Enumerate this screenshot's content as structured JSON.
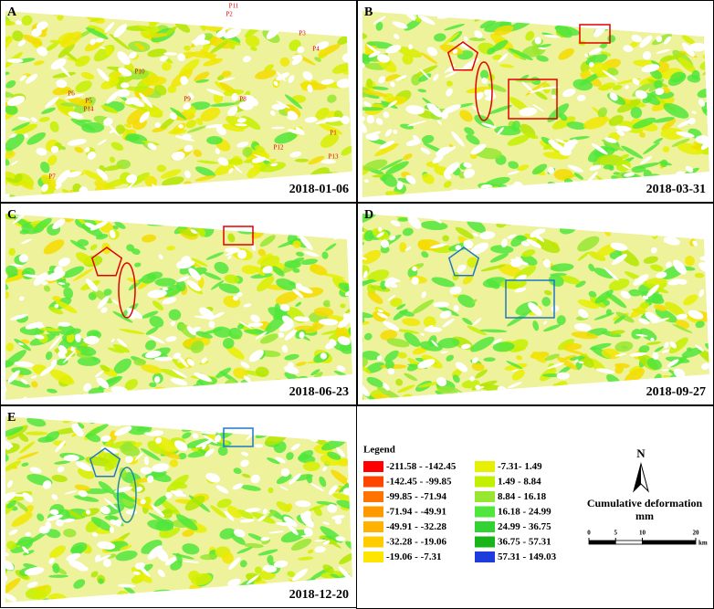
{
  "panels": [
    {
      "letter": "A",
      "date": "2018-01-06"
    },
    {
      "letter": "B",
      "date": "2018-03-31"
    },
    {
      "letter": "C",
      "date": "2018-06-23"
    },
    {
      "letter": "D",
      "date": "2018-09-27"
    },
    {
      "letter": "E",
      "date": "2018-12-20"
    }
  ],
  "points": [
    "P1",
    "P2",
    "P3",
    "P4",
    "P5",
    "P6",
    "P7",
    "P8",
    "P9",
    "P10",
    "P11",
    "P12",
    "P13",
    "P14"
  ],
  "legend": {
    "title": "Legend",
    "items": [
      {
        "label": "-211.58 - -142.45",
        "color": "#ff0000"
      },
      {
        "label": "-142.45 - -99.85",
        "color": "#ff4500"
      },
      {
        "label": "-99.85 - -71.94",
        "color": "#ff7300"
      },
      {
        "label": "-71.94 - -49.91",
        "color": "#ff9900"
      },
      {
        "label": "-49.91 - -32.28",
        "color": "#ffb300"
      },
      {
        "label": "-32.28 - -19.06",
        "color": "#ffcc00"
      },
      {
        "label": "-19.06 - -7.31",
        "color": "#ffe600"
      },
      {
        "label": "-7.31- 1.49",
        "color": "#e6f000"
      },
      {
        "label": "1.49 - 8.84",
        "color": "#c3f000"
      },
      {
        "label": "8.84 - 16.18",
        "color": "#96e632"
      },
      {
        "label": "16.18 - 24.99",
        "color": "#50e63c"
      },
      {
        "label": "24.99 - 36.75",
        "color": "#32d232"
      },
      {
        "label": "36.75 - 57.31",
        "color": "#19b419"
      },
      {
        "label": "57.31 - 149.03",
        "color": "#1e3cdc"
      }
    ]
  },
  "north": "N",
  "caption": [
    "Cumulative deformation",
    "mm"
  ],
  "scale_bar": {
    "ticks": [
      0,
      5,
      10,
      20
    ],
    "unit": "km"
  }
}
